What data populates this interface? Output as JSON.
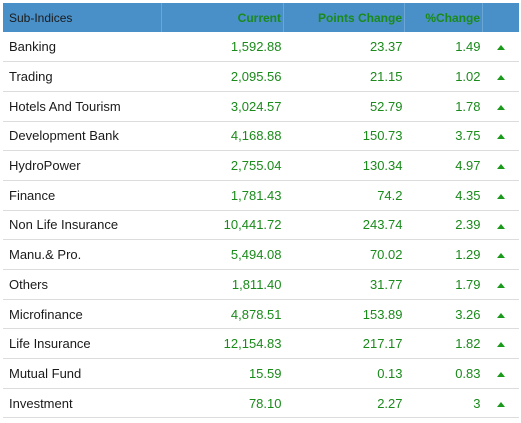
{
  "header": {
    "sub_indices": "Sub-Indices",
    "current": "Current",
    "points_change": "Points Change",
    "percent_change": "%Change"
  },
  "colors": {
    "header_bg": "#4a90c8",
    "positive": "#1a8a1a"
  },
  "rows": [
    {
      "name": "Banking",
      "current": "1,592.88",
      "points": "23.37",
      "pct": "1.49",
      "trend_icon": "up-arrow-icon"
    },
    {
      "name": "Trading",
      "current": "2,095.56",
      "points": "21.15",
      "pct": "1.02",
      "trend_icon": "up-arrow-icon"
    },
    {
      "name": "Hotels And Tourism",
      "current": "3,024.57",
      "points": "52.79",
      "pct": "1.78",
      "trend_icon": "up-arrow-icon"
    },
    {
      "name": "Development Bank",
      "current": "4,168.88",
      "points": "150.73",
      "pct": "3.75",
      "trend_icon": "up-arrow-icon"
    },
    {
      "name": "HydroPower",
      "current": "2,755.04",
      "points": "130.34",
      "pct": "4.97",
      "trend_icon": "up-arrow-icon"
    },
    {
      "name": "Finance",
      "current": "1,781.43",
      "points": "74.2",
      "pct": "4.35",
      "trend_icon": "up-arrow-icon"
    },
    {
      "name": "Non Life Insurance",
      "current": "10,441.72",
      "points": "243.74",
      "pct": "2.39",
      "trend_icon": "up-arrow-icon"
    },
    {
      "name": "Manu.& Pro.",
      "current": "5,494.08",
      "points": "70.02",
      "pct": "1.29",
      "trend_icon": "up-arrow-icon"
    },
    {
      "name": "Others",
      "current": "1,811.40",
      "points": "31.77",
      "pct": "1.79",
      "trend_icon": "up-arrow-icon"
    },
    {
      "name": "Microfinance",
      "current": "4,878.51",
      "points": "153.89",
      "pct": "3.26",
      "trend_icon": "up-arrow-icon"
    },
    {
      "name": "Life Insurance",
      "current": "12,154.83",
      "points": "217.17",
      "pct": "1.82",
      "trend_icon": "up-arrow-icon"
    },
    {
      "name": "Mutual Fund",
      "current": "15.59",
      "points": "0.13",
      "pct": "0.83",
      "trend_icon": "up-arrow-icon"
    },
    {
      "name": "Investment",
      "current": "78.10",
      "points": "2.27",
      "pct": "3",
      "trend_icon": "up-arrow-icon"
    }
  ]
}
